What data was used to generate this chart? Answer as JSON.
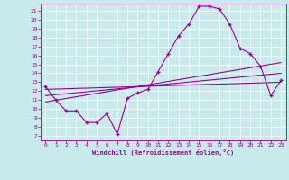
{
  "title": "",
  "xlabel": "Windchill (Refroidissement éolien,°C)",
  "bg_color": "#c8eaea",
  "line_color": "#990099",
  "xlim": [
    -0.5,
    23.5
  ],
  "ylim": [
    6.5,
    21.8
  ],
  "xticks": [
    0,
    1,
    2,
    3,
    4,
    5,
    6,
    7,
    8,
    9,
    10,
    11,
    12,
    13,
    14,
    15,
    16,
    17,
    18,
    19,
    20,
    21,
    22,
    23
  ],
  "yticks": [
    7,
    8,
    9,
    10,
    11,
    12,
    13,
    14,
    15,
    16,
    17,
    18,
    19,
    20,
    21
  ],
  "main_x": [
    0,
    1,
    2,
    3,
    4,
    5,
    6,
    7,
    8,
    9,
    10,
    11,
    12,
    13,
    14,
    15,
    16,
    17,
    18,
    19,
    20,
    21,
    22,
    23
  ],
  "main_y": [
    12.5,
    11.0,
    9.8,
    9.8,
    8.5,
    8.5,
    9.5,
    7.2,
    11.2,
    11.8,
    12.2,
    14.2,
    16.2,
    18.2,
    19.5,
    21.5,
    21.5,
    21.2,
    19.5,
    16.8,
    16.2,
    14.8,
    11.5,
    13.2
  ],
  "trend1_x": [
    0,
    23
  ],
  "trend1_y": [
    10.8,
    15.2
  ],
  "trend2_x": [
    0,
    23
  ],
  "trend2_y": [
    11.5,
    14.0
  ],
  "trend3_x": [
    0,
    23
  ],
  "trend3_y": [
    12.2,
    13.0
  ]
}
